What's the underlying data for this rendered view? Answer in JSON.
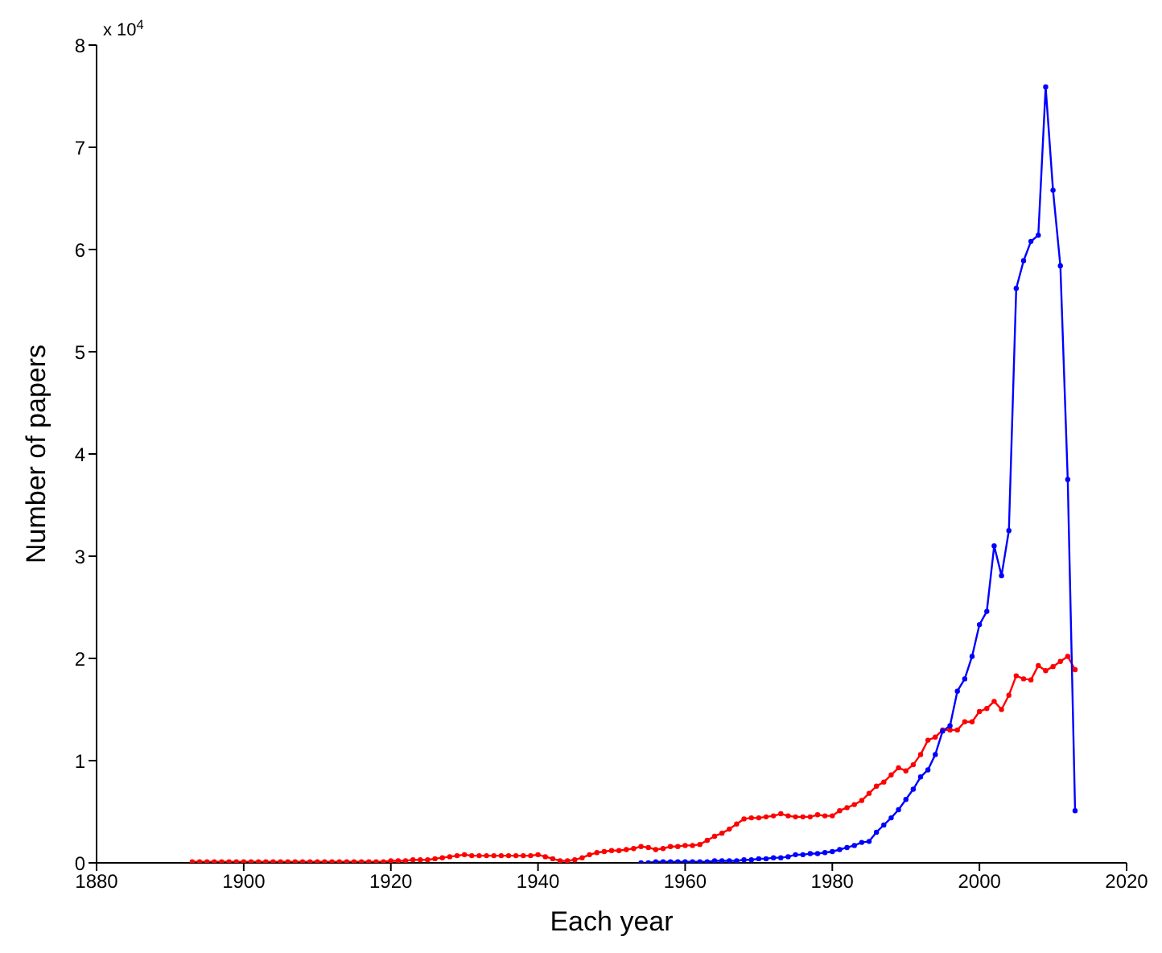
{
  "chart_data": {
    "type": "line",
    "xlabel": "Each year",
    "ylabel": "Number of papers",
    "annotations": [
      "x 10$^{4}$"
    ],
    "xlim": [
      1880,
      2020
    ],
    "xticks": [
      1880,
      1900,
      1920,
      1940,
      1960,
      1980,
      2000,
      2020
    ],
    "ylim": [
      0,
      8
    ],
    "yticks": [
      0,
      1,
      2,
      3,
      4,
      5,
      6,
      7,
      8
    ],
    "grid": false,
    "marker": "circle",
    "line_style": "solid",
    "series": [
      {
        "color": "#ff0000",
        "x": [
          1893,
          1894,
          1895,
          1896,
          1897,
          1898,
          1899,
          1900,
          1901,
          1902,
          1903,
          1904,
          1905,
          1906,
          1907,
          1908,
          1909,
          1910,
          1911,
          1912,
          1913,
          1914,
          1915,
          1916,
          1917,
          1918,
          1919,
          1920,
          1921,
          1922,
          1923,
          1924,
          1925,
          1926,
          1927,
          1928,
          1929,
          1930,
          1931,
          1932,
          1933,
          1934,
          1935,
          1936,
          1937,
          1938,
          1939,
          1940,
          1941,
          1942,
          1943,
          1944,
          1945,
          1946,
          1947,
          1948,
          1949,
          1950,
          1951,
          1952,
          1953,
          1954,
          1955,
          1956,
          1957,
          1958,
          1959,
          1960,
          1961,
          1962,
          1963,
          1964,
          1965,
          1966,
          1967,
          1968,
          1969,
          1970,
          1971,
          1972,
          1973,
          1974,
          1975,
          1976,
          1977,
          1978,
          1979,
          1980,
          1981,
          1982,
          1983,
          1984,
          1985,
          1986,
          1987,
          1988,
          1989,
          1990,
          1991,
          1992,
          1993,
          1994,
          1995,
          1996,
          1997,
          1998,
          1999,
          2000,
          2001,
          2002,
          2003,
          2004,
          2005,
          2006,
          2007,
          2008,
          2009,
          2010,
          2011,
          2012,
          2013
        ],
        "values": [
          0.01,
          0.01,
          0.01,
          0.01,
          0.01,
          0.01,
          0.01,
          0.01,
          0.01,
          0.01,
          0.01,
          0.01,
          0.01,
          0.01,
          0.01,
          0.01,
          0.01,
          0.01,
          0.01,
          0.01,
          0.01,
          0.01,
          0.01,
          0.01,
          0.01,
          0.01,
          0.01,
          0.02,
          0.02,
          0.02,
          0.03,
          0.03,
          0.03,
          0.04,
          0.05,
          0.06,
          0.07,
          0.08,
          0.07,
          0.07,
          0.07,
          0.07,
          0.07,
          0.07,
          0.07,
          0.07,
          0.07,
          0.08,
          0.06,
          0.04,
          0.02,
          0.02,
          0.03,
          0.05,
          0.08,
          0.1,
          0.11,
          0.12,
          0.12,
          0.13,
          0.14,
          0.16,
          0.15,
          0.13,
          0.14,
          0.16,
          0.16,
          0.17,
          0.17,
          0.18,
          0.22,
          0.26,
          0.29,
          0.33,
          0.38,
          0.43,
          0.44,
          0.44,
          0.45,
          0.46,
          0.48,
          0.46,
          0.45,
          0.45,
          0.45,
          0.47,
          0.46,
          0.46,
          0.51,
          0.54,
          0.57,
          0.61,
          0.68,
          0.75,
          0.79,
          0.86,
          0.93,
          0.9,
          0.96,
          1.06,
          1.2,
          1.23,
          1.3,
          1.3,
          1.3,
          1.38,
          1.38,
          1.48,
          1.51,
          1.58,
          1.5,
          1.64,
          1.83,
          1.8,
          1.79,
          1.93,
          1.88,
          1.92,
          1.97,
          2.02,
          1.89
        ]
      },
      {
        "color": "#0000ff",
        "x": [
          1954,
          1955,
          1956,
          1957,
          1958,
          1959,
          1960,
          1961,
          1962,
          1963,
          1964,
          1965,
          1966,
          1967,
          1968,
          1969,
          1970,
          1971,
          1972,
          1973,
          1974,
          1975,
          1976,
          1977,
          1978,
          1979,
          1980,
          1981,
          1982,
          1983,
          1984,
          1985,
          1986,
          1987,
          1988,
          1989,
          1990,
          1991,
          1992,
          1993,
          1994,
          1995,
          1996,
          1997,
          1998,
          1999,
          2000,
          2001,
          2002,
          2003,
          2004,
          2005,
          2006,
          2007,
          2008,
          2009,
          2010,
          2011,
          2012,
          2013
        ],
        "values": [
          0,
          0,
          0.01,
          0.01,
          0.01,
          0.01,
          0.01,
          0.01,
          0.01,
          0.01,
          0.02,
          0.02,
          0.02,
          0.02,
          0.03,
          0.03,
          0.04,
          0.04,
          0.05,
          0.05,
          0.06,
          0.08,
          0.08,
          0.09,
          0.09,
          0.1,
          0.11,
          0.13,
          0.15,
          0.17,
          0.2,
          0.21,
          0.3,
          0.37,
          0.44,
          0.52,
          0.62,
          0.72,
          0.84,
          0.91,
          1.06,
          1.29,
          1.34,
          1.68,
          1.8,
          2.02,
          2.33,
          2.46,
          3.1,
          2.81,
          3.25,
          5.62,
          5.89,
          6.08,
          6.14,
          7.59,
          6.58,
          5.84,
          3.75,
          0.51
        ]
      }
    ]
  }
}
